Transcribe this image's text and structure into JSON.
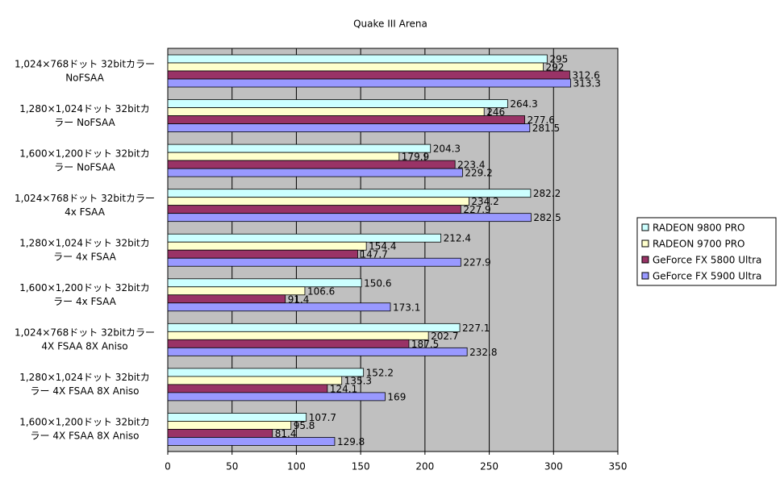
{
  "chart_data": {
    "type": "hbar",
    "title": "Quake III Arena",
    "categories": [
      [
        "1,024×768ドット 32bitカラー",
        "NoFSAA"
      ],
      [
        "1,280×1,024ドット 32bitカ",
        "ラー NoFSAA"
      ],
      [
        "1,600×1,200ドット 32bitカ",
        "ラー NoFSAA"
      ],
      [
        "1,024×768ドット 32bitカラー",
        "4x FSAA"
      ],
      [
        "1,280×1,024ドット 32bitカ",
        "ラー 4x FSAA"
      ],
      [
        "1,600×1,200ドット 32bitカ",
        "ラー 4x FSAA"
      ],
      [
        "1,024×768ドット 32bitカラー",
        "4X FSAA 8X Aniso"
      ],
      [
        "1,280×1,024ドット 32bitカ",
        "ラー 4X FSAA 8X Aniso"
      ],
      [
        "1,600×1,200ドット 32bitカ",
        "ラー 4X FSAA 8X Aniso"
      ]
    ],
    "series": [
      {
        "name": "RADEON 9800 PRO",
        "color": "#ccffff",
        "values": [
          295,
          264.3,
          204.3,
          282.2,
          212.4,
          150.6,
          227.1,
          152.2,
          107.7
        ]
      },
      {
        "name": "RADEON 9700 PRO",
        "color": "#ffffcc",
        "values": [
          292,
          246,
          179.9,
          234.2,
          154.4,
          106.6,
          202.7,
          135.3,
          95.8
        ]
      },
      {
        "name": "GeForce FX 5800 Ultra",
        "color": "#993366",
        "values": [
          312.6,
          277.6,
          223.4,
          227.9,
          147.7,
          91.4,
          187.5,
          124.1,
          81.4
        ]
      },
      {
        "name": "GeForce FX 5900 Ultra",
        "color": "#9999ff",
        "values": [
          313.3,
          281.5,
          229.2,
          282.5,
          227.9,
          173.1,
          232.8,
          169,
          129.8
        ]
      }
    ],
    "xlim": [
      0,
      350
    ],
    "xticks": [
      0,
      50,
      100,
      150,
      200,
      250,
      300,
      350
    ],
    "grid": true,
    "legend": "right"
  }
}
